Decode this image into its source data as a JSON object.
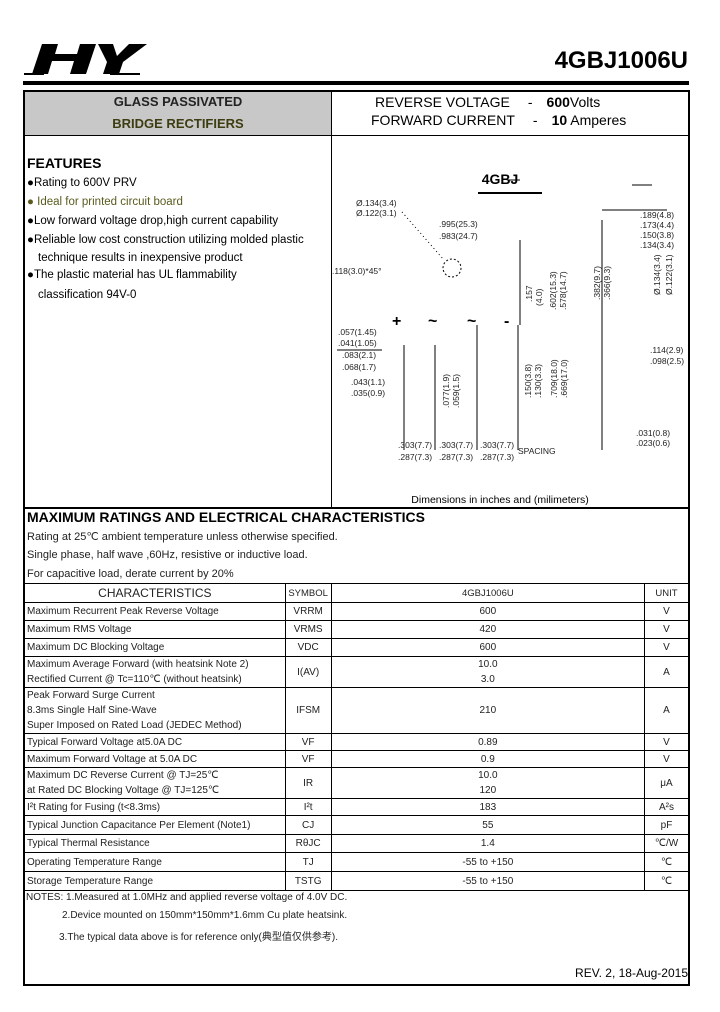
{
  "header": {
    "logo_text": "HY",
    "part_number": "4GBJ1006U"
  },
  "title_block": {
    "line1": "GLASS PASSIVATED",
    "line2": "BRIDGE RECTIFIERS",
    "rv_label": "REVERSE VOLTAGE",
    "rv_dash": "-",
    "rv_value": "600",
    "rv_unit": "Volts",
    "fc_label": "FORWARD CURRENT",
    "fc_dash": "-",
    "fc_value": "10",
    "fc_unit": " Amperes"
  },
  "features": {
    "title": "FEATURES",
    "bullet": "●",
    "items": [
      "Rating  to 600V PRV",
      "Ideal for printed circuit board",
      "Low forward voltage drop,high current capability",
      "Reliable low cost construction utilizing molded plastic",
      "technique results in inexpensive product",
      "The plastic material has UL flammability",
      "classification 94V-0"
    ],
    "highlight_color": "#5a5a1e"
  },
  "diagram": {
    "package": "4GBJ",
    "caption": "Dimensions in inches and (milimeters)",
    "labels": {
      "hole1": "Ø.134(3.4)",
      "hole2": "Ø.122(3.1)",
      "len1": ".995(25.3)",
      "len2": ".983(24.7)",
      "chamfer": ".118(3.0)*45°",
      "d189": ".189(4.8)",
      "d173": ".173(4.4)",
      "d150": ".150(3.8)",
      "d134": ".134(3.4)",
      "h382": ".382(9.7)",
      "h366": ".366(9.3)",
      "ph134": "Ø.134(3.4)",
      "ph122": "Ø.122(3.1)",
      "h157": ".157",
      "h40": "(4.0)",
      "h602": ".602(15.3)",
      "h578": ".578(14.7)",
      "plus": "+",
      "ac1": "~",
      "ac2": "~",
      "minus": "-",
      "w057": ".057(1.45)",
      "w041": ".041(1.05)",
      "w083": ".083(2.1)",
      "w068": ".068(1.7)",
      "w043": ".043(1.1)",
      "w035": ".035(0.9)",
      "l077": ".077(1.9)",
      "l059": ".059(1.5)",
      "l150": ".150(3.8)",
      "l130": ".130(3.3)",
      "l709": ".709(18.0)",
      "l669": ".669(17.0)",
      "r114": ".114(2.9)",
      "r098": ".098(2.5)",
      "r031": ".031(0.8)",
      "r023": ".023(0.6)",
      "s1a": ".303(7.7)",
      "s1b": ".287(7.3)",
      "s2a": ".303(7.7)",
      "s2b": ".287(7.3)",
      "s3a": ".303(7.7)",
      "s3b": ".287(7.3)",
      "spacing": "SPACING"
    }
  },
  "ratings": {
    "title": "MAXIMUM RATINGS AND ELECTRICAL CHARACTERISTICS",
    "notes": [
      "Rating at 25℃ ambient temperature unless otherwise specified.",
      "Single phase, half wave ,60Hz, resistive or inductive load.",
      "For capacitive load, derate current by 20%"
    ]
  },
  "table": {
    "headers": [
      "CHARACTERISTICS",
      "SYMBOL",
      "4GBJ1006U",
      "UNIT"
    ],
    "rows": [
      {
        "char": [
          "Maximum Recurrent Peak Reverse Voltage"
        ],
        "symbol": "VRRM",
        "value": [
          "600"
        ],
        "unit": "V"
      },
      {
        "char": [
          "Maximum RMS Voltage"
        ],
        "symbol": "VRMS",
        "value": [
          "420"
        ],
        "unit": "V"
      },
      {
        "char": [
          "Maximum DC Blocking Voltage"
        ],
        "symbol": "VDC",
        "value": [
          "600"
        ],
        "unit": "V"
      },
      {
        "char": [
          "Maximum Average   Forward   (with heatsink Note 2)",
          "Rectified  Current       @ Tc=110℃   (without heatsink)"
        ],
        "symbol": "I(AV)",
        "value": [
          "10.0",
          "3.0"
        ],
        "unit": "A"
      },
      {
        "char": [
          "Peak Forward Surge Current",
          "8.3ms Single Half Sine-Wave",
          "Super Imposed on Rated Load (JEDEC Method)"
        ],
        "symbol": "IFSM",
        "value": [
          "210"
        ],
        "unit": "A"
      },
      {
        "char": [
          "Typical  Forward Voltage at5.0A DC"
        ],
        "symbol": "VF",
        "value": [
          "0.89"
        ],
        "unit": "V"
      },
      {
        "char": [
          "Maximum  Forward Voltage at 5.0A DC"
        ],
        "symbol": "VF",
        "value": [
          "0.9"
        ],
        "unit": "V"
      },
      {
        "char": [
          "Maximum  DC Reverse Current          @ TJ=25℃",
          "at Rated DC Blocking Voltage          @ TJ=125℃"
        ],
        "symbol": "IR",
        "value": [
          "10.0",
          "120"
        ],
        "unit": "μA"
      },
      {
        "char": [
          "I²t Rating for Fusing (t<8.3ms)"
        ],
        "symbol": "I²t",
        "value": [
          "183"
        ],
        "unit": "A²s"
      },
      {
        "char": [
          "Typical Junction Capacitance Per Element (Note1)"
        ],
        "symbol": "CJ",
        "value": [
          "55"
        ],
        "unit": "pF"
      },
      {
        "char": [
          "Typical Thermal Resistance"
        ],
        "symbol": "RθJC",
        "value": [
          "1.4"
        ],
        "unit": "℃/W"
      },
      {
        "char": [
          "Operating  Temperature Range"
        ],
        "symbol": "TJ",
        "value": [
          "-55 to +150"
        ],
        "unit": "℃"
      },
      {
        "char": [
          "Storage Temperature Range"
        ],
        "symbol": "TSTG",
        "value": [
          "-55 to +150"
        ],
        "unit": "℃"
      }
    ]
  },
  "notes": [
    "NOTES: 1.Measured at 1.0MHz and applied reverse voltage of 4.0V DC.",
    "2.Device mounted on 150mm*150mm*1.6mm Cu plate heatsink.",
    "3.The typical data above is for reference only(典型值仅供参考)."
  ],
  "revision": "REV. 2, 18-Aug-2015"
}
